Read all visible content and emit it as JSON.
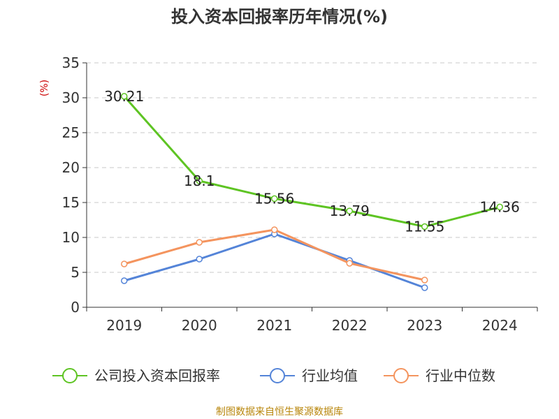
{
  "chart_data": {
    "type": "line",
    "title": "投入资本回报率历年情况(%)",
    "ylabel": "(%)",
    "xlabel": "",
    "categories": [
      "2019",
      "2020",
      "2021",
      "2022",
      "2023",
      "2024"
    ],
    "ylim": [
      0,
      35
    ],
    "yticks": [
      0,
      5,
      10,
      15,
      20,
      25,
      30,
      35
    ],
    "grid": true,
    "legend_position": "bottom",
    "series": [
      {
        "name": "公司投入资本回报率",
        "color": "#5ec423",
        "values": [
          30.21,
          18.1,
          15.56,
          13.79,
          11.55,
          14.36
        ],
        "labels": [
          "30.21",
          "18.1",
          "15.56",
          "13.79",
          "11.55",
          "14.36"
        ]
      },
      {
        "name": "行业均值",
        "color": "#5484d8",
        "values": [
          3.8,
          6.9,
          10.5,
          6.7,
          2.8,
          null
        ]
      },
      {
        "name": "行业中位数",
        "color": "#f4945e",
        "values": [
          6.2,
          9.3,
          11.1,
          6.3,
          3.9,
          null
        ]
      }
    ]
  },
  "footer": {
    "source": "制图数据来自恒生聚源数据库"
  }
}
